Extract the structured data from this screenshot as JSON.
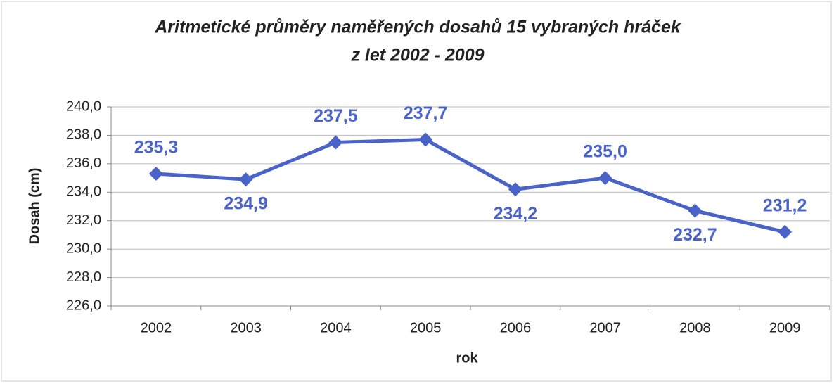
{
  "chart_data": {
    "type": "line",
    "title": [
      "Aritmetické průměry naměřených dosahů 15 vybraných hráček",
      "z let 2002 - 2009"
    ],
    "x_label": "rok",
    "y_label": "Dosah (cm)",
    "categories": [
      "2002",
      "2003",
      "2004",
      "2005",
      "2006",
      "2007",
      "2008",
      "2009"
    ],
    "values": [
      235.3,
      234.9,
      237.5,
      237.7,
      234.2,
      235.0,
      232.7,
      231.2
    ],
    "value_labels": [
      "235,3",
      "234,9",
      "237,5",
      "237,7",
      "234,2",
      "235,0",
      "232,7",
      "231,2"
    ],
    "color": "#4a63c8",
    "ylim": [
      226,
      240
    ],
    "yticks": [
      {
        "value": 226,
        "label": "226,0"
      },
      {
        "value": 228,
        "label": "228,0"
      },
      {
        "value": 230,
        "label": "230,0"
      },
      {
        "value": 232,
        "label": "232,0"
      },
      {
        "value": 234,
        "label": "234,0"
      },
      {
        "value": 236,
        "label": "236,0"
      },
      {
        "value": 238,
        "label": "238,0"
      },
      {
        "value": 240,
        "label": "240,0"
      }
    ],
    "grid": true
  }
}
